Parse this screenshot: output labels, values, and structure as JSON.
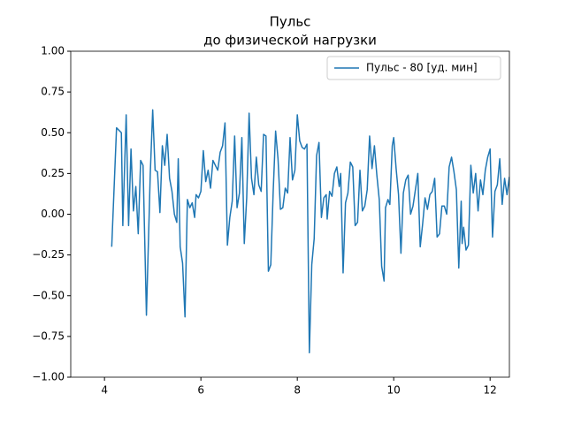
{
  "chart_data": {
    "type": "line",
    "title": "Пульс",
    "subtitle": "до физической нагрузки",
    "x": [
      4.15,
      4.25,
      4.35,
      4.38,
      4.45,
      4.5,
      4.55,
      4.6,
      4.65,
      4.7,
      4.75,
      4.8,
      4.87,
      4.95,
      5.0,
      5.05,
      5.1,
      5.15,
      5.2,
      5.25,
      5.3,
      5.35,
      5.4,
      5.45,
      5.5,
      5.53,
      5.57,
      5.62,
      5.67,
      5.72,
      5.77,
      5.82,
      5.87,
      5.9,
      5.95,
      6.0,
      6.05,
      6.1,
      6.15,
      6.2,
      6.25,
      6.3,
      6.35,
      6.4,
      6.45,
      6.5,
      6.55,
      6.6,
      6.65,
      6.7,
      6.75,
      6.8,
      6.85,
      6.9,
      6.95,
      7.0,
      7.05,
      7.1,
      7.15,
      7.2,
      7.25,
      7.3,
      7.35,
      7.4,
      7.45,
      7.5,
      7.55,
      7.6,
      7.65,
      7.7,
      7.75,
      7.8,
      7.85,
      7.9,
      7.95,
      8.0,
      8.05,
      8.1,
      8.15,
      8.2,
      8.25,
      8.3,
      8.35,
      8.4,
      8.45,
      8.5,
      8.55,
      8.6,
      8.62,
      8.67,
      8.72,
      8.77,
      8.82,
      8.87,
      8.9,
      8.95,
      9.0,
      9.05,
      9.1,
      9.15,
      9.2,
      9.25,
      9.3,
      9.35,
      9.4,
      9.45,
      9.5,
      9.55,
      9.6,
      9.65,
      9.7,
      9.75,
      9.8,
      9.83,
      9.88,
      9.92,
      9.97,
      10.0,
      10.05,
      10.1,
      10.15,
      10.2,
      10.25,
      10.3,
      10.35,
      10.4,
      10.45,
      10.5,
      10.55,
      10.6,
      10.65,
      10.7,
      10.75,
      10.8,
      10.85,
      10.9,
      10.95,
      11.0,
      11.05,
      11.1,
      11.15,
      11.2,
      11.25,
      11.3,
      11.35,
      11.4,
      11.42,
      11.45,
      11.5,
      11.55,
      11.6,
      11.65,
      11.7,
      11.75,
      11.8,
      11.85,
      11.9,
      11.95,
      12.0,
      12.05,
      12.1,
      12.15,
      12.2,
      12.25,
      12.3,
      12.35,
      12.4
    ],
    "series": [
      {
        "name": "Пульс - 80 [уд. мин]",
        "color": "#1f77b4",
        "values": [
          -0.2,
          0.53,
          0.5,
          -0.07,
          0.61,
          -0.07,
          0.4,
          0.02,
          0.17,
          -0.12,
          0.33,
          0.3,
          -0.62,
          0.25,
          0.64,
          0.27,
          0.26,
          0.01,
          0.42,
          0.3,
          0.49,
          0.22,
          0.14,
          0.0,
          -0.05,
          0.34,
          -0.2,
          -0.3,
          -0.63,
          0.09,
          0.04,
          0.07,
          -0.02,
          0.12,
          0.1,
          0.14,
          0.39,
          0.2,
          0.27,
          0.16,
          0.33,
          0.3,
          0.27,
          0.38,
          0.42,
          0.56,
          -0.19,
          -0.02,
          0.08,
          0.48,
          0.04,
          0.13,
          0.47,
          -0.18,
          0.1,
          0.62,
          0.22,
          0.12,
          0.35,
          0.18,
          0.14,
          0.49,
          0.48,
          -0.35,
          -0.31,
          0.14,
          0.51,
          0.34,
          0.03,
          0.04,
          0.16,
          0.13,
          0.47,
          0.21,
          0.27,
          0.61,
          0.45,
          0.41,
          0.4,
          0.43,
          -0.85,
          -0.31,
          -0.15,
          0.36,
          0.44,
          -0.02,
          0.1,
          0.12,
          -0.03,
          0.14,
          0.11,
          0.25,
          0.29,
          0.17,
          0.25,
          -0.36,
          0.07,
          0.13,
          0.32,
          0.29,
          -0.07,
          -0.05,
          0.27,
          0.02,
          0.05,
          0.15,
          0.48,
          0.28,
          0.42,
          0.24,
          0.09,
          -0.32,
          -0.41,
          0.04,
          0.09,
          0.06,
          0.42,
          0.47,
          0.28,
          0.12,
          -0.24,
          0.13,
          0.21,
          0.24,
          0.0,
          0.05,
          0.15,
          0.25,
          -0.2,
          -0.06,
          0.1,
          0.03,
          0.12,
          0.14,
          0.22,
          -0.14,
          -0.12,
          0.05,
          0.05,
          0.0,
          0.29,
          0.35,
          0.26,
          0.15,
          -0.33,
          0.08,
          -0.18,
          -0.08,
          -0.22,
          -0.19,
          0.3,
          0.13,
          0.25,
          0.02,
          0.21,
          0.12,
          0.27,
          0.35,
          0.4,
          -0.14,
          0.14,
          0.18,
          0.34,
          0.06,
          0.22,
          0.12,
          0.23
        ]
      }
    ],
    "xlim": [
      3.3,
      12.4
    ],
    "xticks": [
      4,
      6,
      8,
      10,
      12
    ],
    "ylim": [
      -1,
      1
    ],
    "yticks": [
      {
        "value": -1,
        "label": "−1.00"
      },
      {
        "value": -0.75,
        "label": "−0.75"
      },
      {
        "value": -0.5,
        "label": "−0.50"
      },
      {
        "value": -0.25,
        "label": "−0.25"
      },
      {
        "value": 0,
        "label": "0.00"
      },
      {
        "value": 0.25,
        "label": "0.25"
      },
      {
        "value": 0.5,
        "label": "0.50"
      },
      {
        "value": 0.75,
        "label": "0.75"
      },
      {
        "value": 1,
        "label": "1.00"
      }
    ],
    "legend": "upper right",
    "grid": false
  }
}
